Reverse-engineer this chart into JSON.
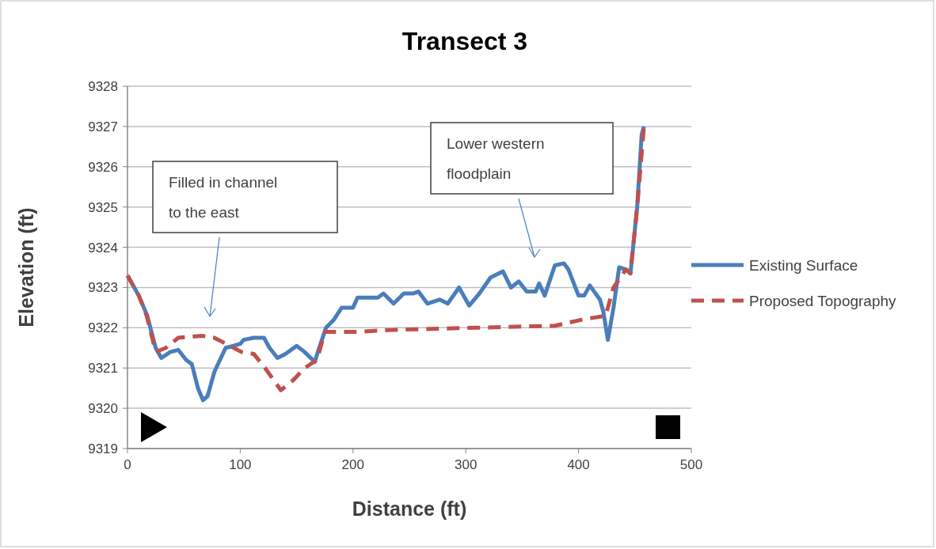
{
  "chart_data": {
    "type": "line",
    "title": "Transect 3",
    "xlabel": "Distance (ft)",
    "ylabel": "Elevation (ft)",
    "xlim": [
      0,
      500
    ],
    "xticks": [
      0,
      100,
      200,
      300,
      400,
      500
    ],
    "ylim": [
      9319,
      9328
    ],
    "yticks": [
      9319,
      9320,
      9321,
      9322,
      9323,
      9324,
      9325,
      9326,
      9327,
      9328
    ],
    "grid": "y",
    "legend": "right",
    "series": [
      {
        "name": "Existing Surface",
        "color": "#4a7ebb",
        "line_style": "solid",
        "x": [
          0,
          10,
          17.5,
          25,
          30,
          38,
          45,
          52,
          57,
          62.5,
          67,
          71,
          77,
          82,
          87,
          94,
          100,
          103,
          112,
          121,
          126,
          133,
          140,
          150,
          157,
          166,
          170,
          176,
          183,
          190,
          200,
          204,
          213,
          222,
          227,
          236,
          245,
          253,
          258,
          266,
          277,
          284,
          294,
          303,
          312,
          322,
          333,
          340,
          347,
          354,
          362,
          365,
          370,
          379,
          387,
          391,
          400,
          405,
          410,
          419,
          422,
          426,
          431,
          436,
          442,
          446,
          452,
          456,
          458
        ],
        "values": [
          9323.3,
          9322.8,
          9322.3,
          9321.5,
          9321.25,
          9321.4,
          9321.45,
          9321.2,
          9321.1,
          9320.5,
          9320.2,
          9320.3,
          9320.9,
          9321.2,
          9321.5,
          9321.55,
          9321.6,
          9321.7,
          9321.75,
          9321.75,
          9321.5,
          9321.25,
          9321.35,
          9321.55,
          9321.4,
          9321.15,
          9321.5,
          9322,
          9322.2,
          9322.5,
          9322.5,
          9322.75,
          9322.75,
          9322.75,
          9322.85,
          9322.6,
          9322.85,
          9322.85,
          9322.9,
          9322.6,
          9322.7,
          9322.6,
          9323,
          9322.55,
          9322.85,
          9323.25,
          9323.4,
          9323,
          9323.15,
          9322.9,
          9322.9,
          9323.1,
          9322.8,
          9323.55,
          9323.6,
          9323.45,
          9322.8,
          9322.8,
          9323.05,
          9322.7,
          9322.4,
          9321.7,
          9322.5,
          9323.5,
          9323.45,
          9323.35,
          9325,
          9326.8,
          9327
        ]
      },
      {
        "name": "Proposed Topography",
        "color": "#c0504d",
        "line_style": "dashed",
        "x": [
          0,
          10,
          17,
          25,
          34,
          45,
          66,
          77,
          91,
          101,
          112,
          122,
          136,
          147,
          157,
          168,
          175,
          203,
          238,
          308,
          379,
          403,
          424,
          431,
          442,
          446,
          452,
          458
        ],
        "values": [
          9323.3,
          9322.8,
          9322.3,
          9321.4,
          9321.5,
          9321.75,
          9321.8,
          9321.75,
          9321.55,
          9321.4,
          9321.35,
          9321,
          9320.45,
          9320.7,
          9321,
          9321.2,
          9321.9,
          9321.9,
          9321.95,
          9322,
          9322.05,
          9322.2,
          9322.3,
          9323,
          9323.45,
          9323.35,
          9325,
          9327
        ]
      }
    ],
    "annotations": [
      "Filled in channel to the east",
      "Lower western floodplain"
    ]
  }
}
